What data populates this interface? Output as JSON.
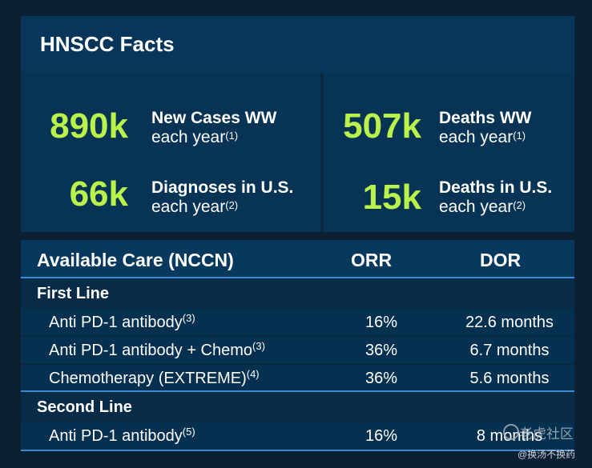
{
  "title": "HNSCC Facts",
  "facts": [
    {
      "value": "890k",
      "line1": "New Cases WW",
      "line2": "each year",
      "ref": "(1)"
    },
    {
      "value": "66k",
      "line1": "Diagnoses in U.S.",
      "line2": "each year",
      "ref": "(2)"
    },
    {
      "value": "507k",
      "line1": "Deaths WW",
      "line2": "each year",
      "ref": "(1)"
    },
    {
      "value": "15k",
      "line1": "Deaths in U.S.",
      "line2": "each year",
      "ref": "(2)"
    }
  ],
  "table": {
    "headers": {
      "care": "Available Care (NCCN)",
      "orr": "ORR",
      "dor": "DOR"
    },
    "sections": [
      {
        "label": "First Line",
        "rows": [
          {
            "name": "Anti PD-1 antibody",
            "ref": "(3)",
            "orr": "16%",
            "dor": "22.6 months"
          },
          {
            "name": "Anti PD-1 antibody + Chemo",
            "ref": "(3)",
            "orr": "36%",
            "dor": "6.7 months"
          },
          {
            "name": "Chemotherapy (EXTREME)",
            "ref": "(4)",
            "orr": "36%",
            "dor": "5.6 months"
          }
        ]
      },
      {
        "label": "Second Line",
        "rows": [
          {
            "name": "Anti PD-1 antibody",
            "ref": "(5)",
            "orr": "16%",
            "dor": "8 months"
          }
        ]
      }
    ]
  },
  "watermark": {
    "line1": "老虎社区",
    "line2": "@换汤不换药"
  }
}
